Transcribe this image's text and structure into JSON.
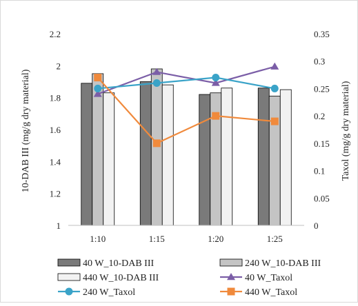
{
  "chart_data": {
    "type": "bar+line",
    "categories": [
      "1:10",
      "1:15",
      "1:20",
      "1:25"
    ],
    "y_left": {
      "label": "10-DAB III (mg/g dry material)",
      "lim": [
        1,
        2.2
      ],
      "ticks": [
        "1",
        "1.2",
        "1.4",
        "1.6",
        "1.8",
        "2",
        "2.2"
      ]
    },
    "y_right": {
      "label": "Taxol (mg/g dry material)",
      "lim": [
        0,
        0.35
      ],
      "ticks": [
        "0",
        "0.05",
        "0.1",
        "0.15",
        "0.2",
        "0.25",
        "0.3",
        "0.35"
      ]
    },
    "bar_series": [
      {
        "name": "40 W_10-DAB III",
        "values": [
          1.89,
          1.9,
          1.82,
          1.86
        ],
        "color": "#7a7a7a"
      },
      {
        "name": "240 W_10-DAB III",
        "values": [
          1.95,
          1.98,
          1.83,
          1.81
        ],
        "color": "#c4c4c4"
      },
      {
        "name": "440 W_10-DAB III",
        "values": [
          1.83,
          1.88,
          1.86,
          1.85
        ],
        "color": "#f2f2f2"
      }
    ],
    "line_series": [
      {
        "name": "40 W_Taxol",
        "values": [
          0.24,
          0.28,
          0.26,
          0.29
        ],
        "color": "#7b5ea7",
        "marker": "triangle"
      },
      {
        "name": "240 W_Taxol",
        "values": [
          0.25,
          0.26,
          0.27,
          0.25
        ],
        "color": "#3aa3c8",
        "marker": "circle"
      },
      {
        "name": "440 W_Taxol",
        "values": [
          0.27,
          0.15,
          0.2,
          0.19
        ],
        "color": "#f08a3c",
        "marker": "square"
      }
    ],
    "grid": false,
    "legend_position": "bottom"
  }
}
